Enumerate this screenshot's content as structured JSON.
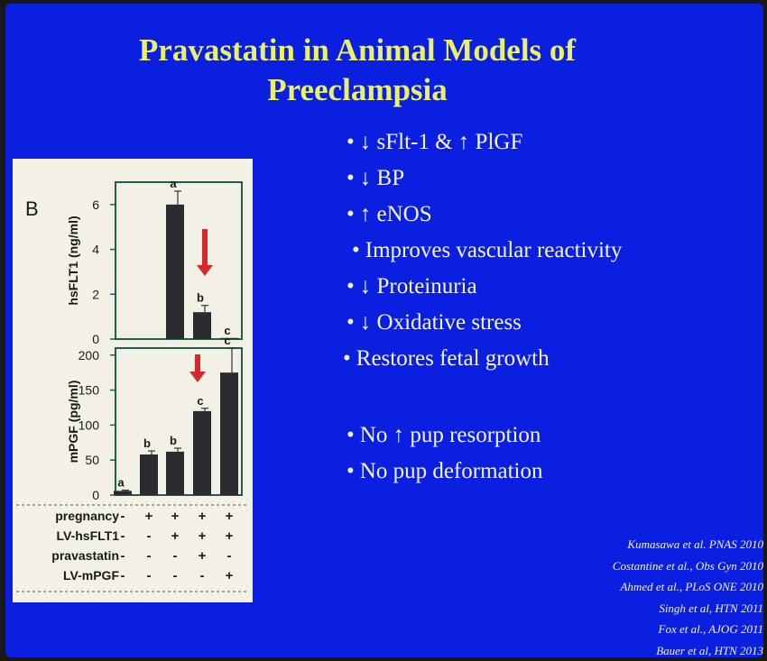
{
  "slide": {
    "title_line1": "Pravastatin in Animal Models of",
    "title_line2": "Preeclampsia",
    "bullets": [
      "↓ sFlt-1 & ↑ PlGF",
      "↓ BP",
      "↑ eNOS",
      "Improves vascular reactivity",
      "↓ Proteinuria",
      "↓ Oxidative stress",
      "Restores fetal growth",
      "No ↑ pup resorption",
      "No pup deformation"
    ],
    "references": [
      "Kumasawa et al. PNAS 2010",
      "Costantine et al., Obs Gyn 2010",
      "Ahmed et al., PLoS ONE 2010",
      "Singh et al, HTN 2011",
      "Fox et al., AJOG 2011",
      "Bauer et al, HTN 2013"
    ],
    "colors": {
      "background": "#0a1fe0",
      "title": "#e9f06a",
      "text": "#f3f4ff",
      "arrow": "#d62a2a",
      "bar": "#2b2a2e",
      "axis": "#1f5d4f"
    }
  },
  "chart_data": [
    {
      "type": "bar",
      "panel_label": "B",
      "title": "",
      "xlabel": "",
      "ylabel": "hsFLT1 (ng/ml)",
      "ylim": [
        0,
        7
      ],
      "yticks": [
        0,
        2,
        4,
        6
      ],
      "categories": [
        "1",
        "2",
        "3",
        "4",
        "5"
      ],
      "values": [
        0,
        0,
        6.0,
        1.2,
        0.05
      ],
      "errors": [
        0,
        0,
        0.6,
        0.3,
        0
      ],
      "letters": [
        "",
        "",
        "a",
        "b",
        "c"
      ],
      "annotation": "down-arrow"
    },
    {
      "type": "bar",
      "title": "",
      "xlabel": "",
      "ylabel": "mPGF (pg/ml)",
      "ylim": [
        0,
        210
      ],
      "yticks": [
        0,
        50,
        100,
        150,
        200
      ],
      "categories": [
        "1",
        "2",
        "3",
        "4",
        "5"
      ],
      "values": [
        6,
        58,
        62,
        120,
        175
      ],
      "errors": [
        1,
        5,
        5,
        4,
        35
      ],
      "letters": [
        "a",
        "b",
        "b",
        "c",
        "c"
      ],
      "annotation": "down-arrow"
    }
  ],
  "conditions": [
    {
      "label": "pregnancy",
      "signs": [
        "-",
        "+",
        "+",
        "+",
        "+"
      ]
    },
    {
      "label": "LV-hsFLT1",
      "signs": [
        "-",
        "-",
        "+",
        "+",
        "+"
      ]
    },
    {
      "label": "pravastatin",
      "signs": [
        "-",
        "-",
        "-",
        "+",
        "-"
      ]
    },
    {
      "label": "LV-mPGF",
      "signs": [
        "-",
        "-",
        "-",
        "-",
        "+"
      ]
    }
  ]
}
